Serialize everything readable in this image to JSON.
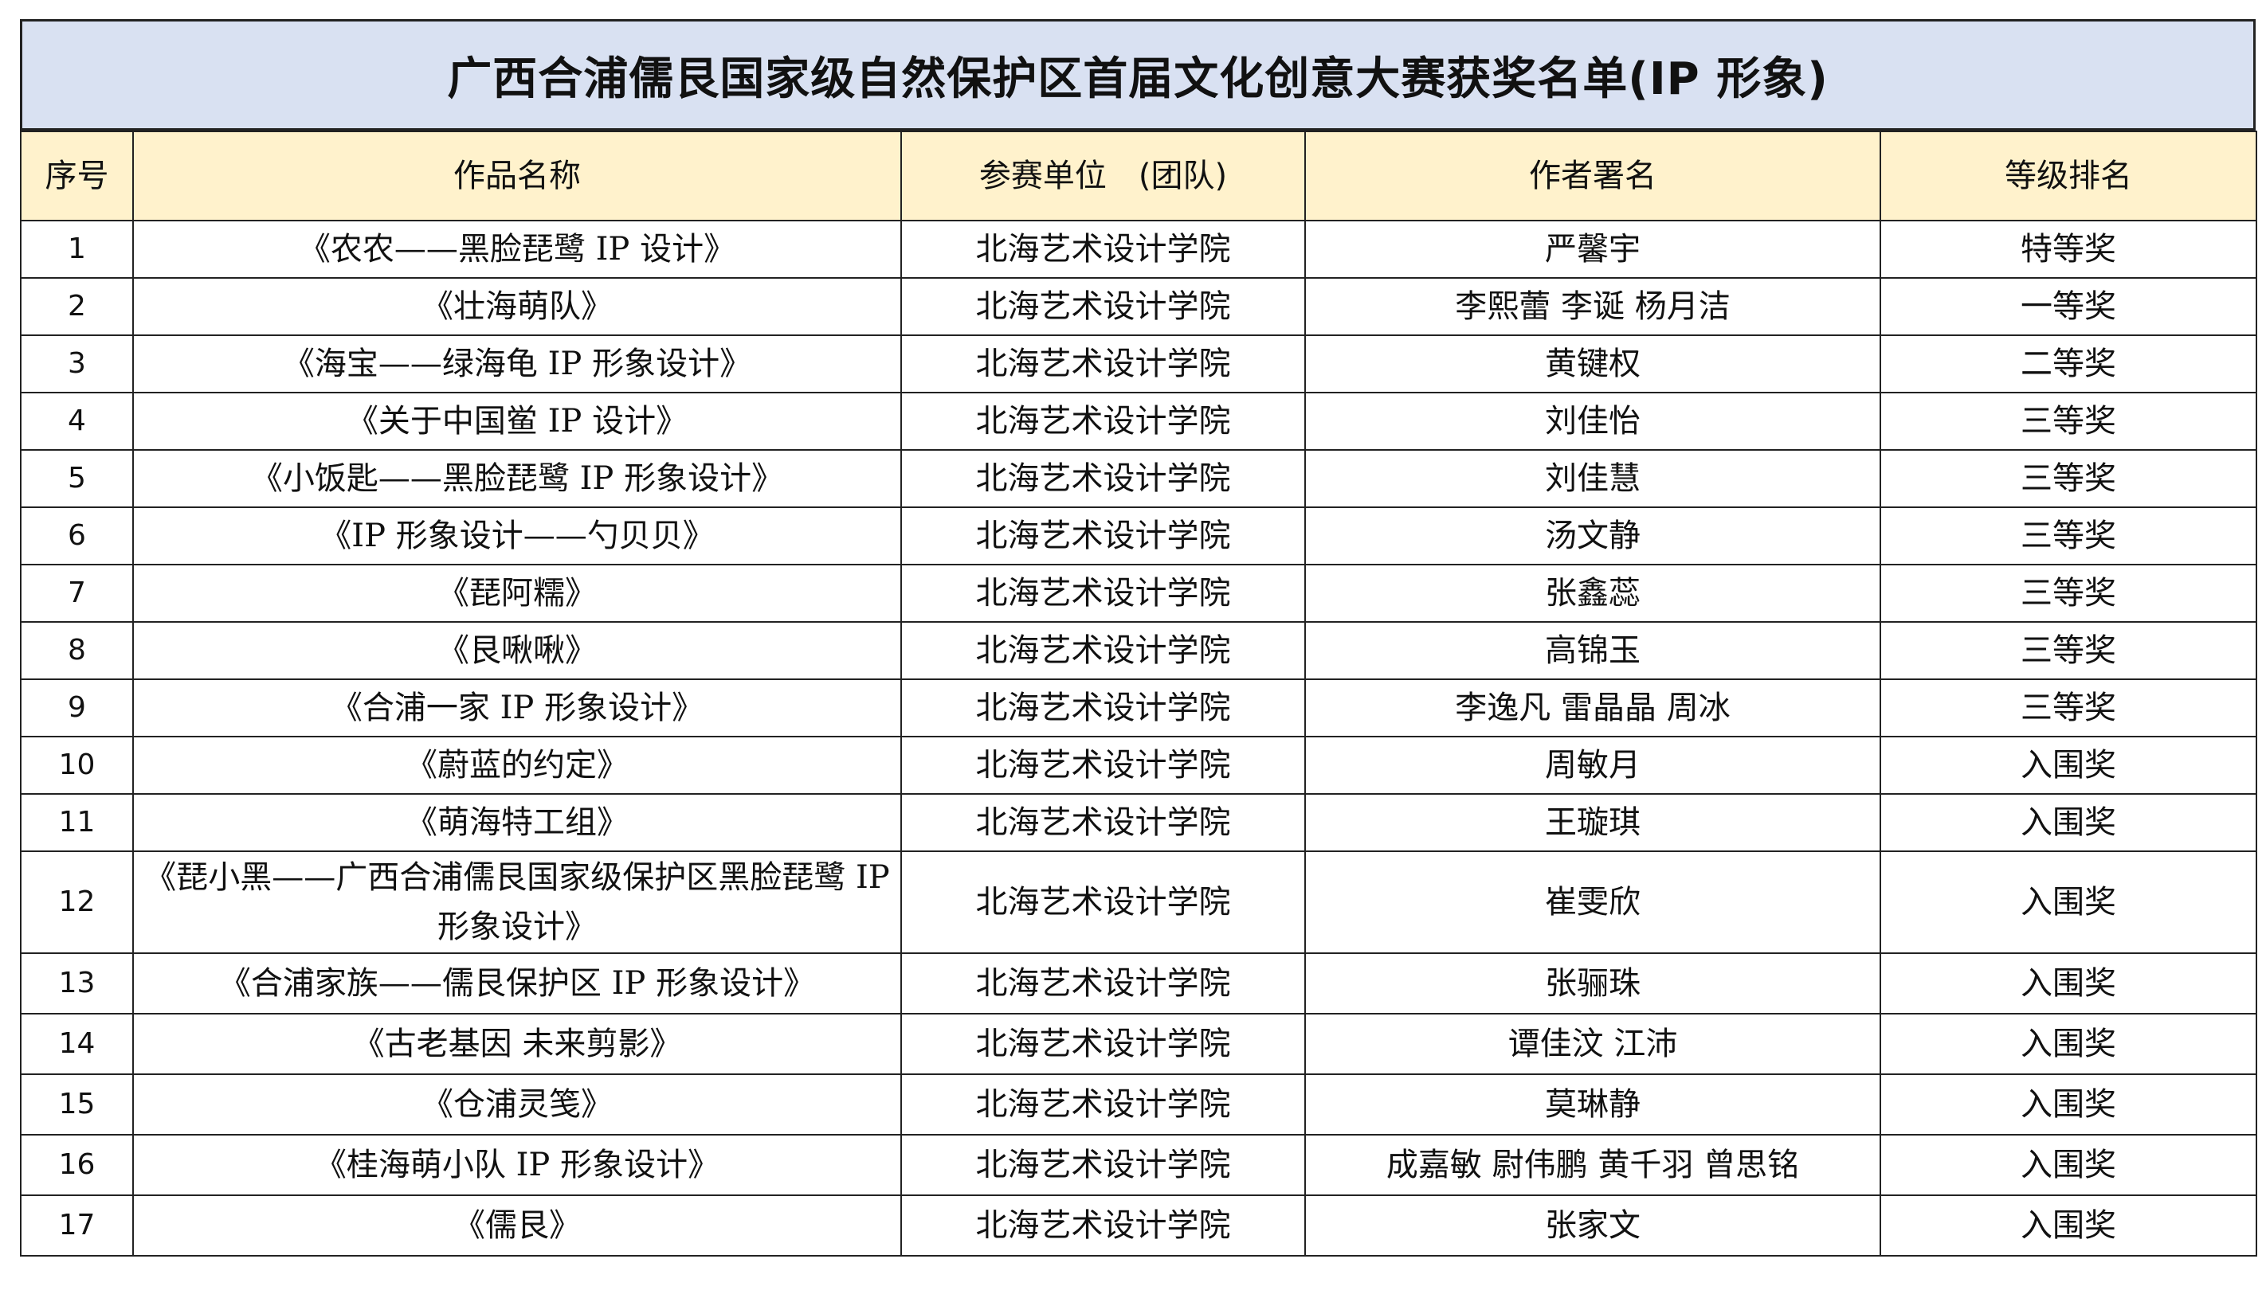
{
  "title": "广西合浦儒艮国家级自然保护区首届文化创意大赛获奖名单(IP 形象)",
  "colors": {
    "title_bg": "#d9e1f2",
    "header_bg": "#fff2cc"
  },
  "headers": [
    "序号",
    "作品名称",
    "参赛单位　(团队)",
    "作者署名",
    "等级排名"
  ],
  "rows": [
    {
      "no": "1",
      "work": "《农农——黑脸琵鹭 IP 设计》",
      "unit": "北海艺术设计学院",
      "author": "严馨宇",
      "rank": "特等奖"
    },
    {
      "no": "2",
      "work": "《壮海萌队》",
      "unit": "北海艺术设计学院",
      "author": "李熙蕾  李诞  杨月洁",
      "rank": "一等奖"
    },
    {
      "no": "3",
      "work": "《海宝——绿海龟 IP 形象设计》",
      "unit": "北海艺术设计学院",
      "author": "黄键权",
      "rank": "二等奖"
    },
    {
      "no": "4",
      "work": "《关于中国鲎 IP 设计》",
      "unit": "北海艺术设计学院",
      "author": "刘佳怡",
      "rank": "三等奖"
    },
    {
      "no": "5",
      "work": "《小饭匙——黑脸琵鹭 IP 形象设计》",
      "unit": "北海艺术设计学院",
      "author": "刘佳慧",
      "rank": "三等奖"
    },
    {
      "no": "6",
      "work": "《IP 形象设计——勺贝贝》",
      "unit": "北海艺术设计学院",
      "author": "汤文静",
      "rank": "三等奖"
    },
    {
      "no": "7",
      "work": "《琵阿糯》",
      "unit": "北海艺术设计学院",
      "author": "张鑫蕊",
      "rank": "三等奖"
    },
    {
      "no": "8",
      "work": "《艮啾啾》",
      "unit": "北海艺术设计学院",
      "author": "高锦玉",
      "rank": "三等奖"
    },
    {
      "no": "9",
      "work": "《合浦一家 IP 形象设计》",
      "unit": "北海艺术设计学院",
      "author": "李逸凡  雷晶晶  周冰",
      "rank": "三等奖"
    },
    {
      "no": "10",
      "work": "《蔚蓝的约定》",
      "unit": "北海艺术设计学院",
      "author": "周敏月",
      "rank": "入围奖"
    },
    {
      "no": "11",
      "work": "《萌海特工组》",
      "unit": "北海艺术设计学院",
      "author": "王璇琪",
      "rank": "入围奖"
    },
    {
      "no": "12",
      "work": "《琵小黑——广西合浦儒艮国家级保护区黑脸琵鹭 IP 形象设计》",
      "unit": "北海艺术设计学院",
      "author": "崔雯欣",
      "rank": "入围奖"
    },
    {
      "no": "13",
      "work": "《合浦家族——儒艮保护区 IP 形象设计》",
      "unit": "北海艺术设计学院",
      "author": "张骊珠",
      "rank": "入围奖"
    },
    {
      "no": "14",
      "work": "《古老基因  未来剪影》",
      "unit": "北海艺术设计学院",
      "author": "谭佳汶  江沛",
      "rank": "入围奖"
    },
    {
      "no": "15",
      "work": "《仓浦灵笺》",
      "unit": "北海艺术设计学院",
      "author": "莫琳静",
      "rank": "入围奖"
    },
    {
      "no": "16",
      "work": "《桂海萌小队 IP 形象设计》",
      "unit": "北海艺术设计学院",
      "author": "成嘉敏  尉伟鹏  黄千羽  曾思铭",
      "rank": "入围奖"
    },
    {
      "no": "17",
      "work": "《儒艮》",
      "unit": "北海艺术设计学院",
      "author": "张家文",
      "rank": "入围奖"
    }
  ]
}
